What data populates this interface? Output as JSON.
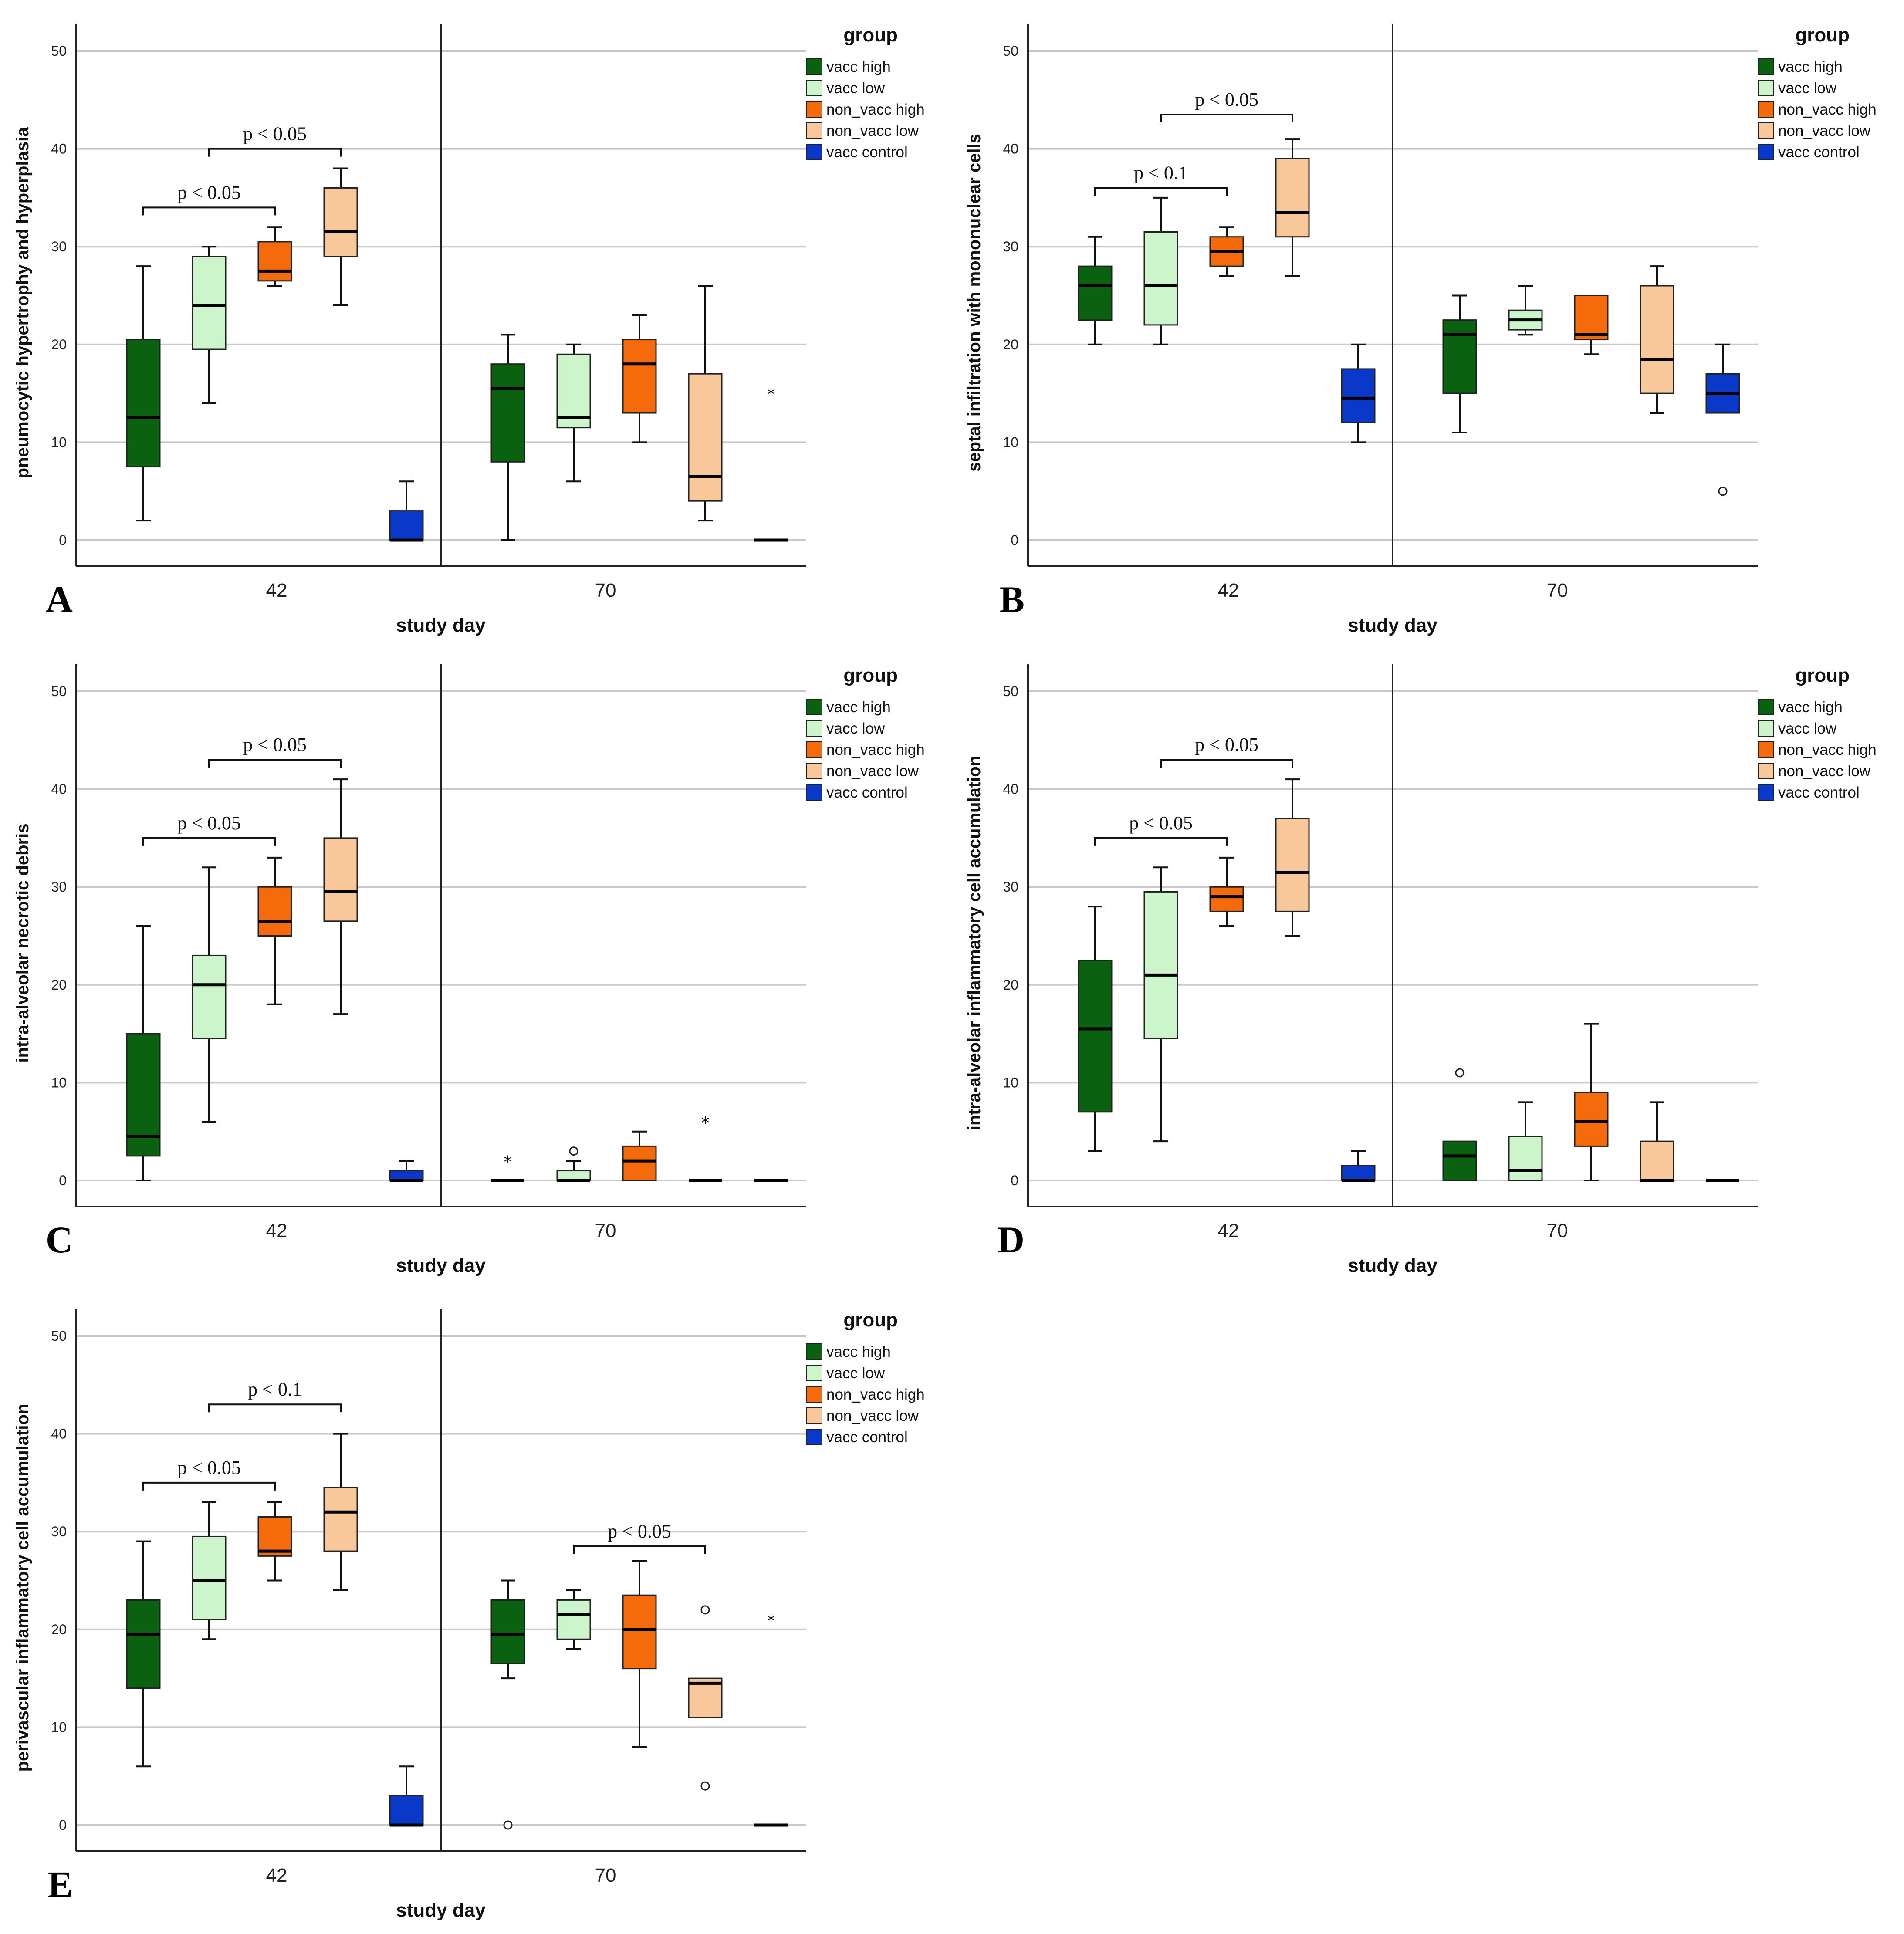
{
  "colors": {
    "vacc_high": "#0a6110",
    "vacc_low": "#ccf5cc",
    "non_vacc_high": "#f56a0a",
    "non_vacc_low": "#f8c89a",
    "vacc_control": "#0a38c8"
  },
  "chart_data": [
    {
      "type": "boxplot",
      "panel": "A",
      "ylabel": "pneumocytic hypertrophy and hyperplasia",
      "xlabel": "study day",
      "ylim": [
        0,
        50
      ],
      "yticks": [
        0,
        10,
        20,
        30,
        40,
        50
      ],
      "x_groups": [
        "42",
        "70"
      ],
      "legend_title": "group",
      "legend": [
        "vacc high",
        "vacc low",
        "non_vacc high",
        "non_vacc low",
        "vacc control"
      ],
      "boxes": [
        {
          "day": "42",
          "group": "vacc high",
          "min": 2,
          "q1": 7.5,
          "median": 12.5,
          "q3": 20.5,
          "max": 28
        },
        {
          "day": "42",
          "group": "vacc low",
          "min": 14,
          "q1": 19.5,
          "median": 24,
          "q3": 29,
          "max": 30
        },
        {
          "day": "42",
          "group": "non_vacc high",
          "min": 26,
          "q1": 26.5,
          "median": 27.5,
          "q3": 30.5,
          "max": 32
        },
        {
          "day": "42",
          "group": "non_vacc low",
          "min": 24,
          "q1": 29,
          "median": 31.5,
          "q3": 36,
          "max": 38
        },
        {
          "day": "42",
          "group": "vacc control",
          "min": 0,
          "q1": 0,
          "median": 0,
          "q3": 3,
          "max": 6
        },
        {
          "day": "70",
          "group": "vacc high",
          "min": 0,
          "q1": 8,
          "median": 15.5,
          "q3": 18,
          "max": 21
        },
        {
          "day": "70",
          "group": "vacc low",
          "min": 6,
          "q1": 11.5,
          "median": 12.5,
          "q3": 19,
          "max": 20
        },
        {
          "day": "70",
          "group": "non_vacc high",
          "min": 10,
          "q1": 13,
          "median": 18,
          "q3": 20.5,
          "max": 23
        },
        {
          "day": "70",
          "group": "non_vacc low",
          "min": 2,
          "q1": 4,
          "median": 6.5,
          "q3": 17,
          "max": 26
        },
        {
          "day": "70",
          "group": "vacc control",
          "min": 0,
          "q1": 0,
          "median": 0,
          "q3": 0,
          "max": 0,
          "extremes": [
            15
          ]
        }
      ],
      "significance": [
        {
          "from": "vacc high",
          "to": "non_vacc high",
          "day": "42",
          "y": 34,
          "label": "p < 0.05"
        },
        {
          "from": "vacc low",
          "to": "non_vacc low",
          "day": "42",
          "y": 40,
          "label": "p < 0.05"
        }
      ]
    },
    {
      "type": "boxplot",
      "panel": "B",
      "ylabel": "septal infiltration with mononuclear cells",
      "xlabel": "study day",
      "ylim": [
        0,
        50
      ],
      "yticks": [
        0,
        10,
        20,
        30,
        40,
        50
      ],
      "x_groups": [
        "42",
        "70"
      ],
      "legend_title": "group",
      "legend": [
        "vacc high",
        "vacc low",
        "non_vacc high",
        "non_vacc low",
        "vacc control"
      ],
      "boxes": [
        {
          "day": "42",
          "group": "vacc high",
          "min": 20,
          "q1": 22.5,
          "median": 26,
          "q3": 28,
          "max": 31
        },
        {
          "day": "42",
          "group": "vacc low",
          "min": 20,
          "q1": 22,
          "median": 26,
          "q3": 31.5,
          "max": 35
        },
        {
          "day": "42",
          "group": "non_vacc high",
          "min": 27,
          "q1": 28,
          "median": 29.5,
          "q3": 31,
          "max": 32
        },
        {
          "day": "42",
          "group": "non_vacc low",
          "min": 27,
          "q1": 31,
          "median": 33.5,
          "q3": 39,
          "max": 41
        },
        {
          "day": "42",
          "group": "vacc control",
          "min": 10,
          "q1": 12,
          "median": 14.5,
          "q3": 17.5,
          "max": 20
        },
        {
          "day": "70",
          "group": "vacc high",
          "min": 11,
          "q1": 15,
          "median": 21,
          "q3": 22.5,
          "max": 25
        },
        {
          "day": "70",
          "group": "vacc low",
          "min": 21,
          "q1": 21.5,
          "median": 22.5,
          "q3": 23.5,
          "max": 26
        },
        {
          "day": "70",
          "group": "non_vacc high",
          "min": 19,
          "q1": 20.5,
          "median": 21,
          "q3": 25,
          "max": 25
        },
        {
          "day": "70",
          "group": "non_vacc low",
          "min": 13,
          "q1": 15,
          "median": 18.5,
          "q3": 26,
          "max": 28
        },
        {
          "day": "70",
          "group": "vacc control",
          "min": 13,
          "q1": 13,
          "median": 15,
          "q3": 17,
          "max": 20,
          "outliers": [
            5
          ]
        }
      ],
      "significance": [
        {
          "from": "vacc high",
          "to": "non_vacc high",
          "day": "42",
          "y": 36,
          "label": "p < 0.1"
        },
        {
          "from": "vacc low",
          "to": "non_vacc low",
          "day": "42",
          "y": 43.5,
          "label": "p < 0.05"
        }
      ]
    },
    {
      "type": "boxplot",
      "panel": "C",
      "ylabel": "intra-alveolar necrotic debris",
      "xlabel": "study day",
      "ylim": [
        0,
        50
      ],
      "yticks": [
        0,
        10,
        20,
        30,
        40,
        50
      ],
      "x_groups": [
        "42",
        "70"
      ],
      "legend_title": "group",
      "legend": [
        "vacc high",
        "vacc low",
        "non_vacc high",
        "non_vacc low",
        "vacc control"
      ],
      "boxes": [
        {
          "day": "42",
          "group": "vacc high",
          "min": 0,
          "q1": 2.5,
          "median": 4.5,
          "q3": 15,
          "max": 26
        },
        {
          "day": "42",
          "group": "vacc low",
          "min": 6,
          "q1": 14.5,
          "median": 20,
          "q3": 23,
          "max": 32
        },
        {
          "day": "42",
          "group": "non_vacc high",
          "min": 18,
          "q1": 25,
          "median": 26.5,
          "q3": 30,
          "max": 33
        },
        {
          "day": "42",
          "group": "non_vacc low",
          "min": 17,
          "q1": 26.5,
          "median": 29.5,
          "q3": 35,
          "max": 41
        },
        {
          "day": "42",
          "group": "vacc control",
          "min": 0,
          "q1": 0,
          "median": 0,
          "q3": 1,
          "max": 2
        },
        {
          "day": "70",
          "group": "vacc high",
          "min": 0,
          "q1": 0,
          "median": 0,
          "q3": 0,
          "max": 0,
          "extremes": [
            2
          ]
        },
        {
          "day": "70",
          "group": "vacc low",
          "min": 0,
          "q1": 0,
          "median": 0,
          "q3": 1,
          "max": 2,
          "outliers": [
            3
          ]
        },
        {
          "day": "70",
          "group": "non_vacc high",
          "min": 0,
          "q1": 0,
          "median": 2,
          "q3": 3.5,
          "max": 5
        },
        {
          "day": "70",
          "group": "non_vacc low",
          "min": 0,
          "q1": 0,
          "median": 0,
          "q3": 0,
          "max": 0,
          "extremes": [
            6
          ]
        },
        {
          "day": "70",
          "group": "vacc control",
          "min": 0,
          "q1": 0,
          "median": 0,
          "q3": 0,
          "max": 0
        }
      ],
      "significance": [
        {
          "from": "vacc high",
          "to": "non_vacc high",
          "day": "42",
          "y": 35,
          "label": "p < 0.05"
        },
        {
          "from": "vacc low",
          "to": "non_vacc low",
          "day": "42",
          "y": 43,
          "label": "p < 0.05"
        }
      ]
    },
    {
      "type": "boxplot",
      "panel": "D",
      "ylabel": "intra-alveolar inflammatory cell accumulation",
      "xlabel": "study day",
      "ylim": [
        0,
        50
      ],
      "yticks": [
        0,
        10,
        20,
        30,
        40,
        50
      ],
      "x_groups": [
        "42",
        "70"
      ],
      "legend_title": "group",
      "legend": [
        "vacc high",
        "vacc low",
        "non_vacc high",
        "non_vacc low",
        "vacc control"
      ],
      "boxes": [
        {
          "day": "42",
          "group": "vacc high",
          "min": 3,
          "q1": 7,
          "median": 15.5,
          "q3": 22.5,
          "max": 28
        },
        {
          "day": "42",
          "group": "vacc low",
          "min": 4,
          "q1": 14.5,
          "median": 21,
          "q3": 29.5,
          "max": 32
        },
        {
          "day": "42",
          "group": "non_vacc high",
          "min": 26,
          "q1": 27.5,
          "median": 29,
          "q3": 30,
          "max": 33
        },
        {
          "day": "42",
          "group": "non_vacc low",
          "min": 25,
          "q1": 27.5,
          "median": 31.5,
          "q3": 37,
          "max": 41
        },
        {
          "day": "42",
          "group": "vacc control",
          "min": 0,
          "q1": 0,
          "median": 0,
          "q3": 1.5,
          "max": 3
        },
        {
          "day": "70",
          "group": "vacc high",
          "min": 0,
          "q1": 0,
          "median": 2.5,
          "q3": 4,
          "max": 4,
          "outliers": [
            11
          ]
        },
        {
          "day": "70",
          "group": "vacc low",
          "min": 0,
          "q1": 0,
          "median": 1,
          "q3": 4.5,
          "max": 8
        },
        {
          "day": "70",
          "group": "non_vacc high",
          "min": 0,
          "q1": 3.5,
          "median": 6,
          "q3": 9,
          "max": 16
        },
        {
          "day": "70",
          "group": "non_vacc low",
          "min": 0,
          "q1": 0,
          "median": 0,
          "q3": 4,
          "max": 8
        },
        {
          "day": "70",
          "group": "vacc control",
          "min": 0,
          "q1": 0,
          "median": 0,
          "q3": 0,
          "max": 0
        }
      ],
      "significance": [
        {
          "from": "vacc high",
          "to": "non_vacc high",
          "day": "42",
          "y": 35,
          "label": "p < 0.05"
        },
        {
          "from": "vacc low",
          "to": "non_vacc low",
          "day": "42",
          "y": 43,
          "label": "p < 0.05"
        }
      ]
    },
    {
      "type": "boxplot",
      "panel": "E",
      "ylabel": "perivascular inflammatory cell accumulation",
      "xlabel": "study day",
      "ylim": [
        0,
        50
      ],
      "yticks": [
        0,
        10,
        20,
        30,
        40,
        50
      ],
      "x_groups": [
        "42",
        "70"
      ],
      "legend_title": "group",
      "legend": [
        "vacc high",
        "vacc low",
        "non_vacc high",
        "non_vacc low",
        "vacc control"
      ],
      "boxes": [
        {
          "day": "42",
          "group": "vacc high",
          "min": 6,
          "q1": 14,
          "median": 19.5,
          "q3": 23,
          "max": 29
        },
        {
          "day": "42",
          "group": "vacc low",
          "min": 19,
          "q1": 21,
          "median": 25,
          "q3": 29.5,
          "max": 33
        },
        {
          "day": "42",
          "group": "non_vacc high",
          "min": 25,
          "q1": 27.5,
          "median": 28,
          "q3": 31.5,
          "max": 33
        },
        {
          "day": "42",
          "group": "non_vacc low",
          "min": 24,
          "q1": 28,
          "median": 32,
          "q3": 34.5,
          "max": 40
        },
        {
          "day": "42",
          "group": "vacc control",
          "min": 0,
          "q1": 0,
          "median": 0,
          "q3": 3,
          "max": 6
        },
        {
          "day": "70",
          "group": "vacc high",
          "min": 15,
          "q1": 16.5,
          "median": 19.5,
          "q3": 23,
          "max": 25,
          "outliers": [
            0
          ]
        },
        {
          "day": "70",
          "group": "vacc low",
          "min": 18,
          "q1": 19,
          "median": 21.5,
          "q3": 23,
          "max": 24
        },
        {
          "day": "70",
          "group": "non_vacc high",
          "min": 8,
          "q1": 16,
          "median": 20,
          "q3": 23.5,
          "max": 27
        },
        {
          "day": "70",
          "group": "non_vacc low",
          "min": 11,
          "q1": 11,
          "median": 14.5,
          "q3": 15,
          "max": 15,
          "outliers": [
            4,
            22
          ]
        },
        {
          "day": "70",
          "group": "vacc control",
          "min": 0,
          "q1": 0,
          "median": 0,
          "q3": 0,
          "max": 0,
          "extremes": [
            21
          ]
        }
      ],
      "significance": [
        {
          "from": "vacc high",
          "to": "non_vacc high",
          "day": "42",
          "y": 35,
          "label": "p < 0.05"
        },
        {
          "from": "vacc low",
          "to": "non_vacc low",
          "day": "42",
          "y": 43,
          "label": "p < 0.1"
        },
        {
          "from": "vacc low",
          "to": "non_vacc low",
          "day": "70",
          "y": 28.5,
          "label": "p < 0.05"
        }
      ]
    }
  ]
}
